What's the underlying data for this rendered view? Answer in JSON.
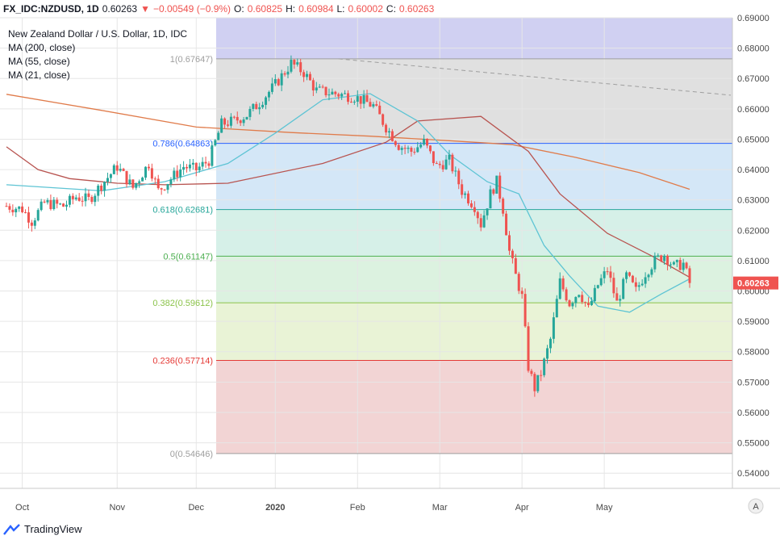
{
  "header": {
    "symbol": "FX_IDC:NZDUSD, 1D",
    "last": "0.60263",
    "arrow": "▼",
    "change": "−0.00549 (−0.9%)",
    "open_label": "O:",
    "open": "0.60825",
    "high_label": "H:",
    "high": "0.60984",
    "low_label": "L:",
    "low": "0.60002",
    "close_label": "C:",
    "close": "0.60263"
  },
  "legend": {
    "title": "New Zealand Dollar / U.S. Dollar, 1D, IDC",
    "ma200": "MA (200, close)",
    "ma55": "MA (55, close)",
    "ma21": "MA (21, close)"
  },
  "axis": {
    "y_ticks": [
      "0.69000",
      "0.68000",
      "0.67000",
      "0.66000",
      "0.65000",
      "0.64000",
      "0.63000",
      "0.62000",
      "0.61000",
      "0.60000",
      "0.59000",
      "0.58000",
      "0.57000",
      "0.56000",
      "0.55000",
      "0.54000"
    ],
    "x_ticks": [
      "Oct",
      "Nov",
      "Dec",
      "2020",
      "Feb",
      "Mar",
      "Apr",
      "May"
    ],
    "price_tag": "0.60263",
    "scale_button": "A"
  },
  "fib_labels": [
    "1(0.67647)",
    "0.786(0.64863)",
    "0.618(0.62681)",
    "0.5(0.61147)",
    "0.382(0.59612)",
    "0.236(0.57714)",
    "0(0.54646)"
  ],
  "footer": {
    "brand": "TradingView"
  },
  "colors": {
    "up": "#26a69a",
    "down": "#ef5350",
    "ma200": "#e07b4a",
    "ma55": "#b85450",
    "ma21": "#5ec4d4"
  },
  "chart_data": {
    "type": "candlestick",
    "title": "New Zealand Dollar / U.S. Dollar, 1D, IDC",
    "x_ticks": [
      "Oct",
      "Nov",
      "Dec",
      "2020",
      "Feb",
      "Mar",
      "Apr",
      "May"
    ],
    "ylim": [
      0.535,
      0.69
    ],
    "fibonacci": [
      {
        "level": 1,
        "price": 0.67647,
        "color": "#9e9e9e",
        "fill": "#e0e0e0"
      },
      {
        "level": 0.786,
        "price": 0.64863,
        "color": "#2962ff",
        "fill": "#d4e7f7"
      },
      {
        "level": 0.618,
        "price": 0.62681,
        "color": "#26a69a",
        "fill": "#d6f0e8"
      },
      {
        "level": 0.5,
        "price": 0.61147,
        "color": "#4caf50",
        "fill": "#dcf2e0"
      },
      {
        "level": 0.382,
        "price": 0.59612,
        "color": "#8bc34a",
        "fill": "#e9f3d6"
      },
      {
        "level": 0.236,
        "price": 0.57714,
        "color": "#e53935",
        "fill": "#f2d4d4"
      },
      {
        "level": 0,
        "price": 0.54646,
        "color": "#9e9e9e",
        "fill": "#ffffff"
      }
    ],
    "fib_extension_fill": "#d0d0f2",
    "trendline": {
      "start": {
        "date_index": 105,
        "price": 0.67647
      },
      "end": {
        "date_index": 238,
        "price": 0.6645
      }
    },
    "series": [
      {
        "name": "MA (200, close)",
        "points": [
          [
            0,
            0.6648
          ],
          [
            30,
            0.6595
          ],
          [
            60,
            0.654
          ],
          [
            90,
            0.6522
          ],
          [
            115,
            0.651
          ],
          [
            140,
            0.6495
          ],
          [
            160,
            0.6482
          ],
          [
            180,
            0.644
          ],
          [
            200,
            0.639
          ],
          [
            216,
            0.6335
          ]
        ]
      },
      {
        "name": "MA (55, close)",
        "points": [
          [
            0,
            0.6475
          ],
          [
            10,
            0.64
          ],
          [
            20,
            0.637
          ],
          [
            35,
            0.6355
          ],
          [
            50,
            0.635
          ],
          [
            70,
            0.6355
          ],
          [
            100,
            0.642
          ],
          [
            120,
            0.649
          ],
          [
            130,
            0.656
          ],
          [
            150,
            0.6575
          ],
          [
            165,
            0.646
          ],
          [
            175,
            0.632
          ],
          [
            190,
            0.619
          ],
          [
            205,
            0.611
          ],
          [
            216,
            0.6045
          ]
        ]
      },
      {
        "name": "MA (21, close)",
        "points": [
          [
            0,
            0.635
          ],
          [
            15,
            0.634
          ],
          [
            30,
            0.633
          ],
          [
            50,
            0.636
          ],
          [
            70,
            0.642
          ],
          [
            85,
            0.652
          ],
          [
            100,
            0.663
          ],
          [
            115,
            0.665
          ],
          [
            130,
            0.656
          ],
          [
            140,
            0.645
          ],
          [
            152,
            0.636
          ],
          [
            162,
            0.632
          ],
          [
            170,
            0.615
          ],
          [
            178,
            0.605
          ],
          [
            187,
            0.595
          ],
          [
            197,
            0.593
          ],
          [
            207,
            0.599
          ],
          [
            216,
            0.604
          ]
        ]
      }
    ],
    "candles_close_path": [
      [
        0,
        0.628
      ],
      [
        5,
        0.627
      ],
      [
        8,
        0.623
      ],
      [
        12,
        0.629
      ],
      [
        18,
        0.628
      ],
      [
        22,
        0.631
      ],
      [
        26,
        0.63
      ],
      [
        30,
        0.635
      ],
      [
        35,
        0.641
      ],
      [
        40,
        0.634
      ],
      [
        45,
        0.642
      ],
      [
        48,
        0.633
      ],
      [
        52,
        0.637
      ],
      [
        56,
        0.641
      ],
      [
        60,
        0.64
      ],
      [
        64,
        0.643
      ],
      [
        68,
        0.655
      ],
      [
        72,
        0.656
      ],
      [
        76,
        0.658
      ],
      [
        80,
        0.662
      ],
      [
        85,
        0.668
      ],
      [
        90,
        0.675
      ],
      [
        94,
        0.672
      ],
      [
        98,
        0.666
      ],
      [
        104,
        0.665
      ],
      [
        110,
        0.664
      ],
      [
        116,
        0.661
      ],
      [
        120,
        0.654
      ],
      [
        124,
        0.648
      ],
      [
        128,
        0.646
      ],
      [
        132,
        0.649
      ],
      [
        136,
        0.641
      ],
      [
        140,
        0.643
      ],
      [
        144,
        0.633
      ],
      [
        148,
        0.628
      ],
      [
        150,
        0.622
      ],
      [
        153,
        0.632
      ],
      [
        155,
        0.636
      ],
      [
        157,
        0.627
      ],
      [
        159,
        0.613
      ],
      [
        161,
        0.605
      ],
      [
        163,
        0.598
      ],
      [
        165,
        0.575
      ],
      [
        167,
        0.568
      ],
      [
        169,
        0.573
      ],
      [
        172,
        0.584
      ],
      [
        175,
        0.603
      ],
      [
        178,
        0.596
      ],
      [
        181,
        0.6
      ],
      [
        184,
        0.594
      ],
      [
        187,
        0.602
      ],
      [
        190,
        0.607
      ],
      [
        193,
        0.596
      ],
      [
        196,
        0.605
      ],
      [
        199,
        0.6
      ],
      [
        202,
        0.606
      ],
      [
        205,
        0.61
      ],
      [
        208,
        0.612
      ],
      [
        211,
        0.608
      ],
      [
        214,
        0.609
      ],
      [
        216,
        0.6026
      ]
    ],
    "last_price": 0.60263
  }
}
